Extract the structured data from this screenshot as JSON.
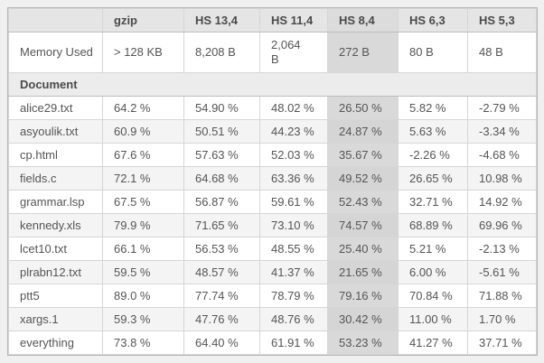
{
  "table": {
    "highlight_column_index": 4,
    "columns": [
      "",
      "gzip",
      "HS 13,4",
      "HS 11,4",
      "HS 8,4",
      "HS 6,3",
      "HS 5,3"
    ],
    "memory_row": {
      "label": "Memory Used",
      "values": [
        "> 128 KB",
        "8,208 B",
        "2,064 B",
        "272 B",
        "80 B",
        "48 B"
      ]
    },
    "section_header": "Document",
    "rows": [
      {
        "name": "alice29.txt",
        "values": [
          "64.2 %",
          "54.90 %",
          "48.02 %",
          "26.50 %",
          "5.82 %",
          "-2.79 %"
        ]
      },
      {
        "name": "asyoulik.txt",
        "values": [
          "60.9 %",
          "50.51 %",
          "44.23 %",
          "24.87 %",
          "5.63 %",
          "-3.34 %"
        ]
      },
      {
        "name": "cp.html",
        "values": [
          "67.6 %",
          "57.63 %",
          "52.03 %",
          "35.67 %",
          "-2.26 %",
          "-4.68 %"
        ]
      },
      {
        "name": "fields.c",
        "values": [
          "72.1 %",
          "64.68 %",
          "63.36 %",
          "49.52 %",
          "26.65 %",
          "10.98 %"
        ]
      },
      {
        "name": "grammar.lsp",
        "values": [
          "67.5 %",
          "56.87 %",
          "59.61 %",
          "52.43 %",
          "32.71 %",
          "14.92 %"
        ]
      },
      {
        "name": "kennedy.xls",
        "values": [
          "79.9 %",
          "71.65 %",
          "73.10 %",
          "74.57 %",
          "68.89 %",
          "69.96 %"
        ]
      },
      {
        "name": "lcet10.txt",
        "values": [
          "66.1 %",
          "56.53 %",
          "48.55 %",
          "25.40 %",
          "5.21 %",
          "-2.13 %"
        ]
      },
      {
        "name": "plrabn12.txt",
        "values": [
          "59.5 %",
          "48.57 %",
          "41.37 %",
          "21.65 %",
          "6.00 %",
          "-5.61 %"
        ]
      },
      {
        "name": "ptt5",
        "values": [
          "89.0 %",
          "77.74 %",
          "78.79 %",
          "79.16 %",
          "70.84 %",
          "71.88 %"
        ]
      },
      {
        "name": "xargs.1",
        "values": [
          "59.3 %",
          "47.76 %",
          "48.76 %",
          "30.42 %",
          "11.00 %",
          "1.70 %"
        ]
      },
      {
        "name": "everything",
        "values": [
          "73.8 %",
          "64.40 %",
          "61.91 %",
          "53.23 %",
          "41.27 %",
          "37.71 %"
        ]
      }
    ],
    "colors": {
      "page_background": "#f0f0f0",
      "header_background": "#e5e5e5",
      "header_highlight_background": "#dcdcdc",
      "section_background": "#ececec",
      "stripe_background": "#f4f4f4",
      "highlight_column_background": "#d9d9d9",
      "cell_border": "#d6d6d6",
      "outer_border": "#b6b6b6",
      "text": "#555555"
    }
  }
}
